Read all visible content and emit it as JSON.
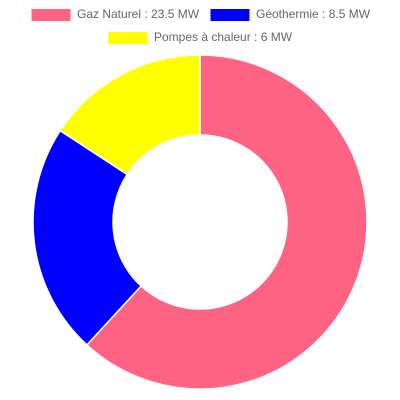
{
  "chart_data": {
    "type": "doughnut",
    "categories": [
      "Gaz Naturel : 23.5 MW",
      "Géothermie : 8.5 MW",
      "Pompes à chaleur : 6 MW"
    ],
    "values": [
      23.5,
      8.5,
      6
    ],
    "colors": [
      "#ff6384",
      "#0000ff",
      "#ffff00"
    ]
  }
}
